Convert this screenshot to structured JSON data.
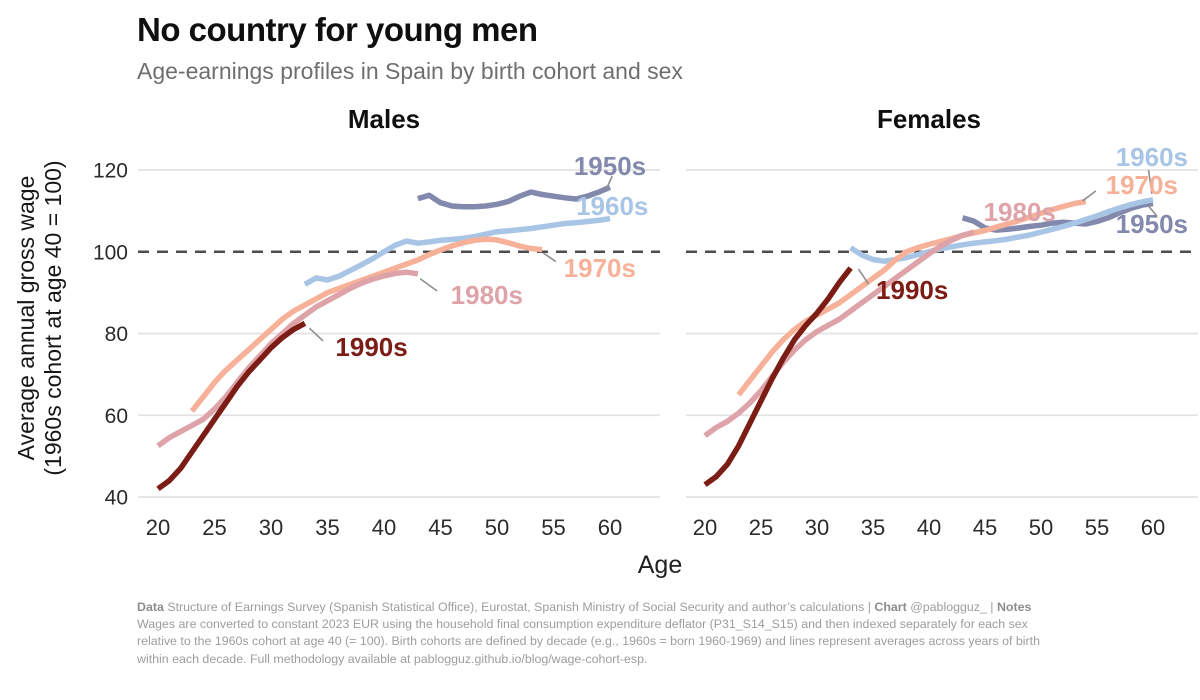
{
  "header": {
    "title": "No country for young men",
    "subtitle": "Age-earnings profiles in Spain by birth cohort and sex"
  },
  "chart_data": {
    "type": "line",
    "y_axis": {
      "label_line1": "Average annual gross wage",
      "label_line2": "(1960s cohort at age 40 = 100)",
      "ticks": [
        120,
        100,
        80,
        60,
        40
      ],
      "range": [
        40,
        124
      ],
      "reference_line": 100,
      "grid": "horizontal"
    },
    "x_axis": {
      "label": "Age",
      "ticks": [
        20,
        25,
        30,
        35,
        40,
        45,
        50,
        55,
        60
      ],
      "range": [
        20,
        60
      ]
    },
    "cohort_colors": {
      "1950s": "#8289ad",
      "1960s": "#a9c5e5",
      "1970s": "#f7b199",
      "1980s": "#dda3a8",
      "1990s": "#7b1d15"
    },
    "reference_line_color": "#4d4d4d",
    "gridline_color": "#e3e3e3",
    "leader_color": "#8f8f8f",
    "panels": [
      {
        "id": "males",
        "title": "Males",
        "series": [
          {
            "cohort": "1950s",
            "color": "#8289ad",
            "age_start": 43,
            "values": [
              113,
              113.8,
              112,
              111.2,
              111,
              111,
              111.2,
              111.6,
              112.3,
              113.6,
              114.6,
              114,
              113.6,
              113.2,
              112.9,
              113.6,
              114.6,
              115.8
            ],
            "label": {
              "text": "1950s",
              "x": 60.0,
              "y": 121.0
            },
            "leader": [
              [
                60.2,
                118.5
              ],
              [
                59.7,
                115.5
              ]
            ]
          },
          {
            "cohort": "1960s",
            "color": "#a9c5e5",
            "age_start": 33,
            "values": [
              92,
              93.6,
              93.1,
              94,
              95.4,
              96.8,
              98.3,
              100,
              101.6,
              102.6,
              102.1,
              102.4,
              102.8,
              103,
              103.3,
              103.7,
              104.3,
              104.9,
              105.1,
              105.4,
              105.7,
              106.1,
              106.5,
              106.9,
              107.1,
              107.4,
              107.7,
              108.1
            ],
            "label": {
              "text": "1960s",
              "x": 60.2,
              "y": 111.2
            }
          },
          {
            "cohort": "1970s",
            "color": "#f7b199",
            "age_start": 23,
            "values": [
              61,
              64.5,
              68,
              71,
              73.5,
              76,
              78.5,
              81,
              83.5,
              85.5,
              87,
              88.5,
              90,
              91,
              92,
              93,
              94,
              95,
              96,
              97,
              98,
              99.3,
              100.4,
              101.4,
              102.2,
              102.8,
              103.1,
              102.9,
              102.2,
              101.4,
              100.8,
              100.5
            ],
            "label": {
              "text": "1970s",
              "x": 59.1,
              "y": 96.0
            },
            "leader": [
              [
                54.1,
                99.7
              ],
              [
                55.2,
                97.6
              ]
            ]
          },
          {
            "cohort": "1980s",
            "color": "#dda3a8",
            "age_start": 20,
            "values": [
              52.5,
              54.5,
              56,
              57.5,
              59,
              61.5,
              64.5,
              68,
              71.5,
              74.5,
              77.5,
              80,
              82.5,
              84.5,
              86.5,
              88,
              89.5,
              91,
              92.3,
              93.3,
              94.1,
              94.7,
              95,
              94.6
            ],
            "label": {
              "text": "1980s",
              "x": 49.1,
              "y": 89.4
            },
            "leader": [
              [
                43.2,
                93.4
              ],
              [
                44.7,
                90.4
              ]
            ]
          },
          {
            "cohort": "1990s",
            "color": "#7b1d15",
            "age_start": 20,
            "values": [
              42,
              44,
              47,
              51,
              55,
              59,
              63,
              67,
              70.5,
              73.5,
              76.5,
              79,
              81,
              82.5
            ],
            "label": {
              "text": "1990s",
              "x": 38.9,
              "y": 76.7
            },
            "leader": [
              [
                33.4,
                81.3
              ],
              [
                34.6,
                78.2
              ]
            ]
          }
        ]
      },
      {
        "id": "females",
        "title": "Females",
        "series": [
          {
            "cohort": "1950s",
            "color": "#8289ad",
            "age_start": 43,
            "values": [
              108.3,
              107.5,
              105.8,
              105.3,
              105.5,
              105.8,
              106.2,
              106.5,
              107,
              107.2,
              107,
              106.8,
              107.4,
              108.3,
              109.5,
              110.6,
              111.4,
              111.8
            ],
            "label": {
              "text": "1950s",
              "x": 59.9,
              "y": 106.8
            },
            "leader": [
              [
                59.6,
                111.2
              ],
              [
                60.3,
                108.9
              ]
            ]
          },
          {
            "cohort": "1960s",
            "color": "#a9c5e5",
            "age_start": 33,
            "values": [
              101,
              99.2,
              98.1,
              97.7,
              98.1,
              98.6,
              99.3,
              100,
              100.7,
              101.2,
              101.7,
              102.1,
              102.4,
              102.7,
              103.1,
              103.6,
              104.1,
              104.8,
              105.5,
              106.2,
              107,
              107.9,
              108.8,
              109.8,
              110.7,
              111.5,
              112.2,
              112.7
            ],
            "label": {
              "text": "1960s",
              "x": 59.9,
              "y": 123.2
            },
            "leader": [
              [
                59.6,
                120.0
              ],
              [
                59.9,
                114.2
              ]
            ]
          },
          {
            "cohort": "1970s",
            "color": "#f7b199",
            "age_start": 23,
            "values": [
              65,
              68.5,
              72,
              75.5,
              78.5,
              81,
              83,
              84.5,
              86,
              87.5,
              89.5,
              91.5,
              93.5,
              95.5,
              98,
              100,
              101,
              101.8,
              102.5,
              103.2,
              104,
              104.6,
              105.2,
              106,
              106.8,
              107.6,
              108.5,
              109.4,
              110.3,
              111.1,
              111.8,
              112.3
            ],
            "label": {
              "text": "1970s",
              "x": 59.0,
              "y": 116.3
            },
            "leader": [
              [
                54.9,
                114.9
              ],
              [
                53.7,
                112.4
              ]
            ]
          },
          {
            "cohort": "1980s",
            "color": "#dda3a8",
            "age_start": 20,
            "values": [
              55,
              57,
              58.5,
              60.5,
              63,
              66,
              69.5,
              73,
              76,
              78.5,
              80.5,
              82,
              83.5,
              85.5,
              87.5,
              89.5,
              91.5,
              93.5,
              95.5,
              97.5,
              99.5,
              101.3,
              102.8,
              104,
              104.8
            ],
            "label": {
              "text": "1980s",
              "x": 48.1,
              "y": 109.7
            }
          },
          {
            "cohort": "1990s",
            "color": "#7b1d15",
            "age_start": 20,
            "values": [
              43,
              45,
              48,
              52.5,
              58,
              63.5,
              69,
              74,
              78.5,
              82,
              85,
              88.5,
              92.5,
              96
            ],
            "label": {
              "text": "1990s",
              "x": 38.5,
              "y": 90.6
            },
            "leader": [
              [
                33.7,
                95.8
              ],
              [
                34.6,
                92.1
              ]
            ]
          }
        ]
      }
    ]
  },
  "footer": {
    "lines": [
      [
        {
          "t": "Data ",
          "b": true
        },
        {
          "t": "Structure of Earnings Survey (Spanish Statistical Office), Eurostat, Spanish Ministry of Social Security and author’s calculations | ",
          "b": false
        },
        {
          "t": "Chart ",
          "b": true
        },
        {
          "t": "@pablogguz_ | ",
          "b": false
        },
        {
          "t": "Notes",
          "b": true
        }
      ],
      [
        {
          "t": "Wages are converted to constant 2023 EUR using the household final consumption expenditure deflator (P31_S14_S15) and then indexed separately for each sex",
          "b": false
        }
      ],
      [
        {
          "t": "relative to the 1960s cohort at age 40 (= 100). Birth cohorts are defined by decade (e.g., 1960s = born 1960-1969) and lines represent averages across years of birth",
          "b": false
        }
      ],
      [
        {
          "t": "within each decade. Full methodology available at pablogguz.github.io/blog/wage-cohort-esp.",
          "b": false
        }
      ]
    ]
  }
}
